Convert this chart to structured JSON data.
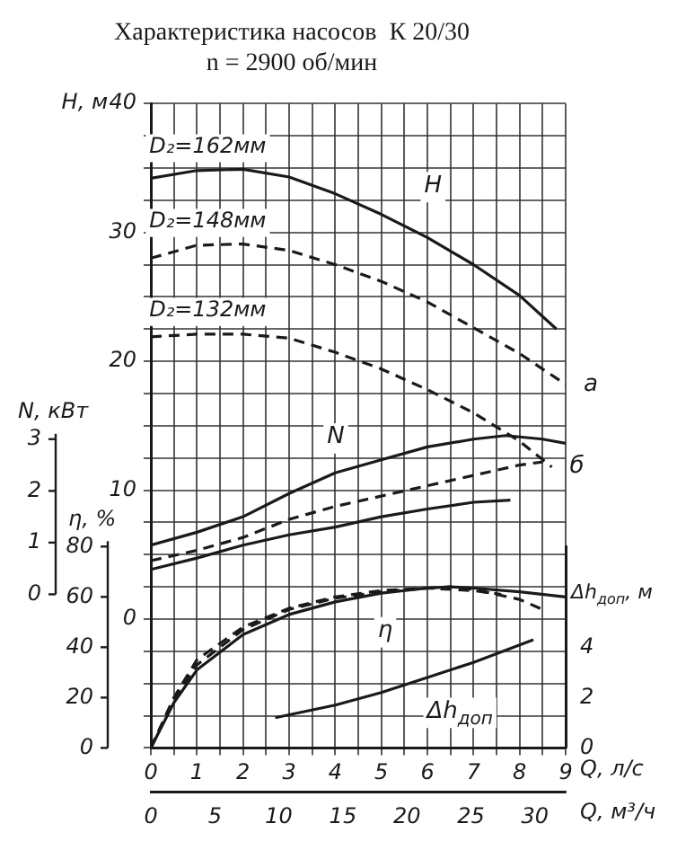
{
  "chart_data": [
    {
      "type": "line",
      "title": "Характеристика насосов  К 20/30",
      "subtitle": "n = 2900 об/мин",
      "xlabel": "Q, л/с",
      "x2label": "Q, м³/ч",
      "ylabel": "H, м",
      "y2label": "N, кВт",
      "xlim": [
        0,
        9
      ],
      "xticks": [
        0,
        {
          "value": 0.5,
          "label": null
        },
        1,
        {
          "value": 1.5,
          "label": null
        },
        2,
        {
          "value": 2.5,
          "label": null
        },
        3,
        {
          "value": 3.5,
          "label": null
        },
        4,
        {
          "value": 4.5,
          "label": null
        },
        5,
        {
          "value": 5.5,
          "label": null
        },
        6,
        {
          "value": 6.5,
          "label": null
        },
        7,
        {
          "value": 7.5,
          "label": null
        },
        8,
        {
          "value": 8.5,
          "label": null
        },
        9
      ],
      "x2lim": [
        0,
        32.4
      ],
      "x2ticks": [
        0,
        5,
        10,
        15,
        20,
        25,
        30
      ],
      "ylim": [
        -10,
        40
      ],
      "yticks": [
        {
          "value": -10,
          "label": null
        },
        {
          "value": -7.5,
          "label": null
        },
        {
          "value": -5,
          "label": null
        },
        {
          "value": -2.5,
          "label": null
        },
        0,
        {
          "value": 2.5,
          "label": null
        },
        {
          "value": 5,
          "label": null
        },
        {
          "value": 7.5,
          "label": null
        },
        10,
        {
          "value": 12.5,
          "label": null
        },
        {
          "value": 15,
          "label": null
        },
        {
          "value": 17.5,
          "label": null
        },
        20,
        {
          "value": 22.5,
          "label": null
        },
        {
          "value": 25,
          "label": null
        },
        {
          "value": 27.5,
          "label": null
        },
        30,
        {
          "value": 32.5,
          "label": null
        },
        {
          "value": 35,
          "label": null
        },
        {
          "value": 37.5,
          "label": null
        },
        40
      ],
      "y2lim": [
        -2.97,
        9.49
      ],
      "y2ticks": [
        0,
        1,
        2,
        3
      ],
      "grid": true,
      "legend": false,
      "marker": "none",
      "series": [
        {
          "name": "D₂=162мм",
          "color": "#1a1a1a",
          "line_style": "solid",
          "x": [
            0,
            1,
            2,
            3,
            4,
            5,
            6,
            7,
            8,
            8.8
          ],
          "values": [
            34.2,
            34.8,
            34.9,
            34.3,
            33,
            31.4,
            29.6,
            27.5,
            25.1,
            22.5
          ]
        },
        {
          "name": "D₂=148мм",
          "color": "#1a1a1a",
          "line_style": "dashed",
          "x": [
            0,
            1,
            2,
            3,
            4,
            5,
            6,
            7,
            8,
            9
          ],
          "values": [
            28,
            29,
            29.1,
            28.6,
            27.5,
            26.2,
            24.6,
            22.6,
            20.6,
            18.2
          ]
        },
        {
          "name": "D₂=132мм",
          "color": "#1a1a1a",
          "line_style": "dashed",
          "x": [
            0,
            1,
            2,
            3,
            4,
            5,
            6,
            7,
            8,
            8.7
          ],
          "values": [
            21.9,
            22.1,
            22.1,
            21.8,
            20.7,
            19.4,
            17.8,
            16,
            13.8,
            11.8
          ]
        },
        {
          "color": "#1a1a1a",
          "line_style": "solid",
          "axis": "y2",
          "x": [
            0,
            1,
            2,
            3,
            4,
            5,
            6,
            7,
            7.7,
            8.5,
            9
          ],
          "values": [
            0.95,
            1.2,
            1.5,
            1.95,
            2.35,
            2.6,
            2.85,
            3.0,
            3.07,
            3.0,
            2.92
          ]
        },
        {
          "color": "#1a1a1a",
          "line_style": "dashed",
          "axis": "y2",
          "x": [
            0,
            1,
            2,
            3,
            4,
            5,
            6,
            7,
            8,
            8.5
          ],
          "values": [
            0.65,
            0.85,
            1.1,
            1.45,
            1.7,
            1.9,
            2.1,
            2.3,
            2.5,
            2.56
          ]
        },
        {
          "color": "#1a1a1a",
          "line_style": "solid",
          "axis": "y2",
          "x": [
            0,
            1,
            2,
            3,
            4,
            5,
            6,
            7,
            7.8
          ],
          "values": [
            0.48,
            0.7,
            0.95,
            1.15,
            1.3,
            1.5,
            1.65,
            1.78,
            1.82
          ]
        }
      ],
      "annotations": [
        "H",
        "N",
        {
          "text": "а",
          "x": 9,
          "y": 18.2
        },
        {
          "text": "б",
          "x": 8.7,
          "y": 11.8
        }
      ]
    },
    {
      "type": "line",
      "ylabel": "η, %",
      "y2label": "Δh$_{доп}$, м",
      "tick_labels": "y",
      "xlim": [
        0,
        9
      ],
      "ylim": [
        0,
        80
      ],
      "yticks": [
        0,
        20,
        40,
        60,
        80
      ],
      "y2lim": [
        0,
        8
      ],
      "y2ticks": [
        0,
        2,
        4
      ],
      "legend": false,
      "marker": "none",
      "series": [
        {
          "color": "#1a1a1a",
          "line_style": "solid",
          "x": [
            0,
            0.5,
            1,
            2,
            3,
            4,
            5,
            6,
            6.5,
            7,
            8,
            9
          ],
          "values": [
            0,
            18,
            31,
            45,
            53,
            58,
            61.5,
            63.5,
            64,
            63.5,
            62,
            60
          ]
        },
        {
          "color": "#1a1a1a",
          "line_style": "dashed",
          "x": [
            0,
            0.5,
            1,
            2,
            3,
            4,
            5,
            6,
            6.5,
            7,
            8,
            8.5
          ],
          "values": [
            0,
            19,
            33,
            47,
            55,
            59.5,
            62,
            63.5,
            64,
            63,
            59,
            55
          ]
        },
        {
          "color": "#1a1a1a",
          "line_style": "dashed",
          "x": [
            0,
            0.5,
            1,
            2,
            3,
            4,
            5,
            6,
            7,
            7.6
          ],
          "values": [
            0,
            20,
            35,
            48,
            55.5,
            60,
            62.5,
            63.5,
            62.5,
            61
          ]
        },
        {
          "color": "#1a1a1a",
          "line_style": "solid",
          "axis": "y2",
          "x": [
            2.7,
            4,
            5,
            6,
            7,
            8.3
          ],
          "values": [
            1.2,
            1.7,
            2.2,
            2.8,
            3.4,
            4.3
          ]
        }
      ],
      "annotations": [
        "η",
        "Δh$_{доп}$"
      ]
    }
  ]
}
